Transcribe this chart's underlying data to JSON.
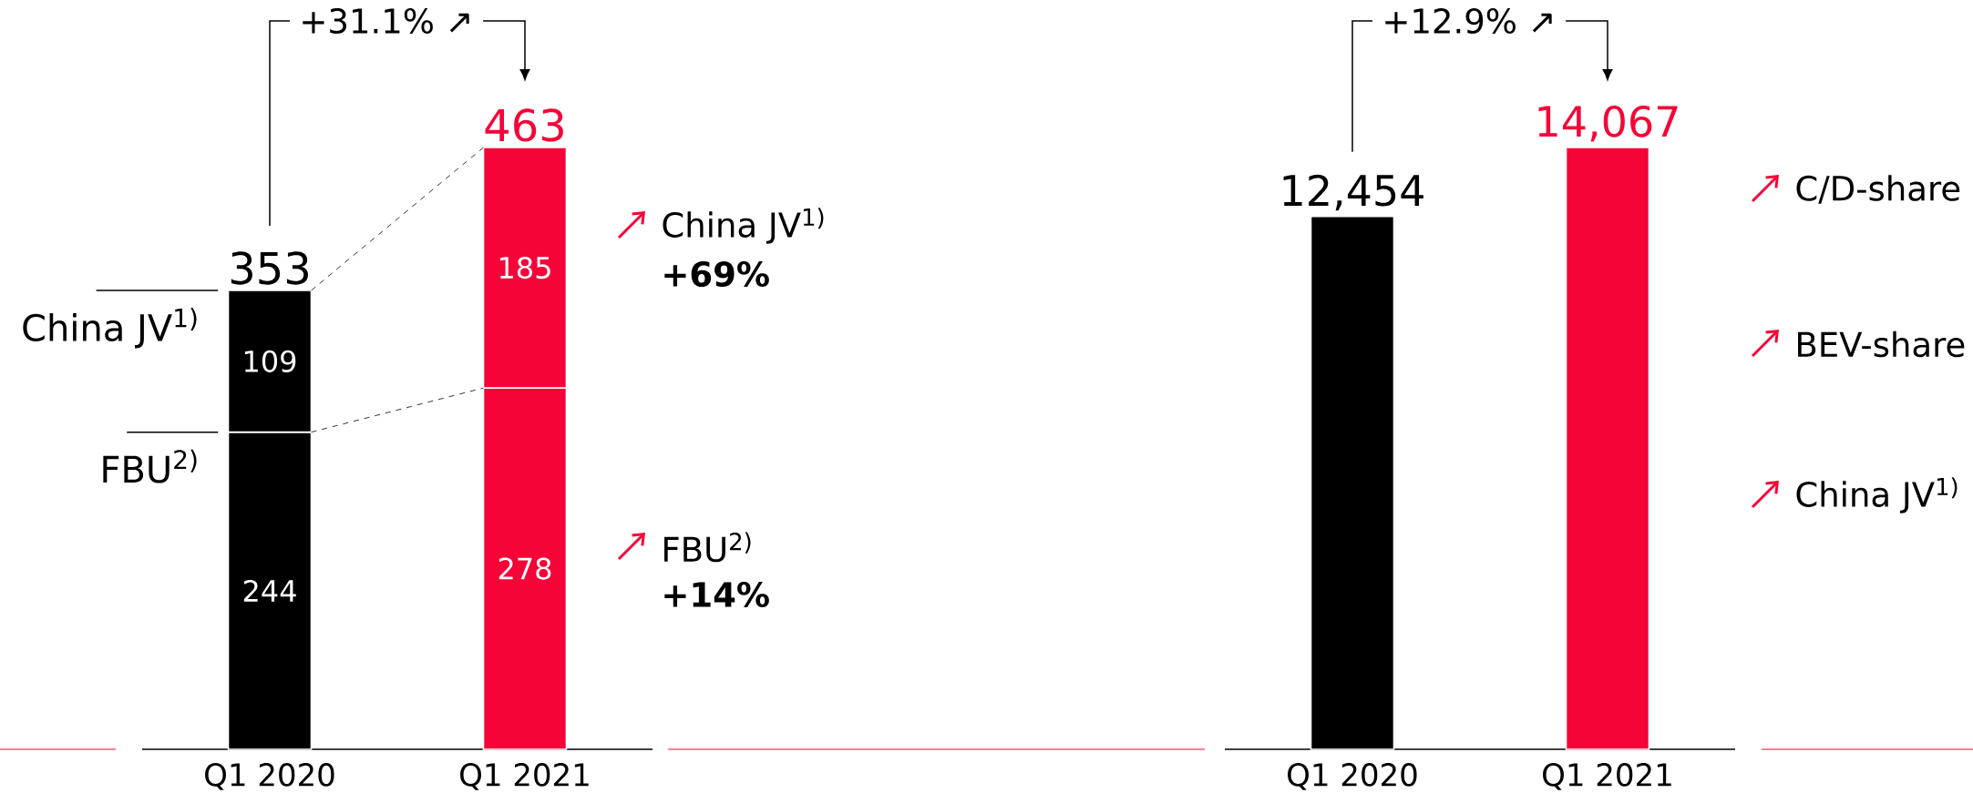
{
  "chart_data": [
    {
      "type": "bar",
      "stacked": true,
      "categories": [
        "Q1 2020",
        "Q1 2021"
      ],
      "series": [
        {
          "name": "FBU$^{2)}$",
          "colors": [
            "#000000",
            "#f50537"
          ],
          "values": [
            244,
            278
          ]
        },
        {
          "name": "China JV$^{1)}$",
          "colors": [
            "#000000",
            "#f50537"
          ],
          "values": [
            109,
            185
          ]
        }
      ],
      "data_labels": true,
      "totals": [
        "353",
        "463"
      ],
      "legend": "left",
      "annotations": [
        "+31.1% ↗",
        "China JV$^{1)}$",
        "+69%",
        "FBU$^{2)}$",
        "+14%"
      ]
    },
    {
      "type": "bar",
      "categories": [
        "Q1 2020",
        "Q1 2021"
      ],
      "values": [
        12454,
        14067
      ],
      "colors": [
        "#000000",
        "#f50537"
      ],
      "value_labels": [
        "12,454",
        "14,067"
      ],
      "annotations": [
        "+12.9% ↗",
        "C/D-share",
        "BEV-share",
        "China JV$^{1)}$"
      ]
    }
  ]
}
